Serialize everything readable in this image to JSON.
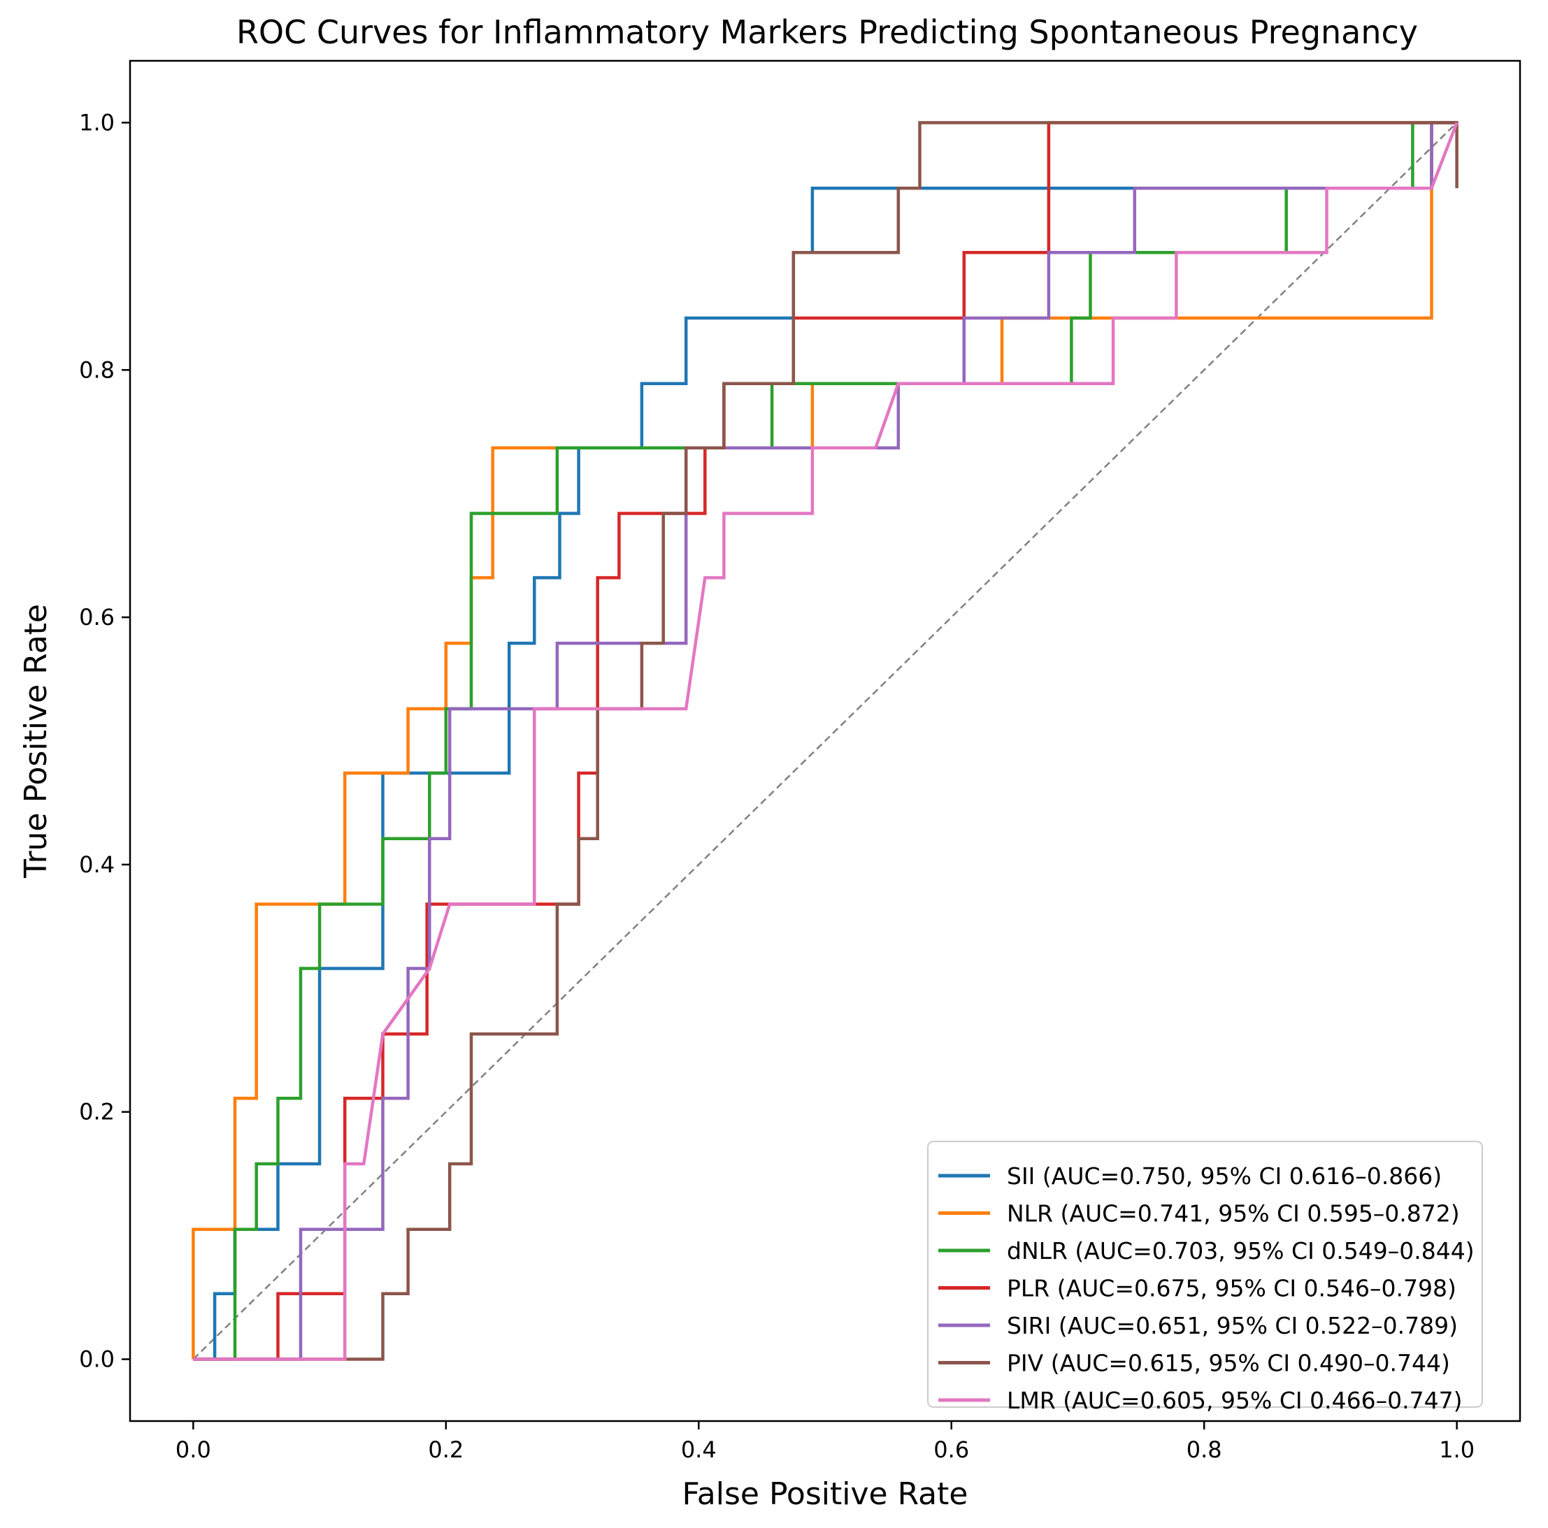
{
  "chart_data": {
    "type": "line",
    "title": "ROC Curves for Inflammatory Markers Predicting Spontaneous Pregnancy",
    "xlabel": "False Positive Rate",
    "ylabel": "True Positive Rate",
    "xlim": [
      -0.05,
      1.05
    ],
    "ylim": [
      -0.05,
      1.05
    ],
    "grid": false,
    "legend_position": "lower-right",
    "xticks": [
      0.0,
      0.2,
      0.4,
      0.6,
      0.8,
      1.0
    ],
    "yticks": [
      0.0,
      0.2,
      0.4,
      0.6,
      0.8,
      1.0
    ],
    "xtick_labels": [
      "0.0",
      "0.2",
      "0.4",
      "0.6",
      "0.8",
      "1.0"
    ],
    "ytick_labels": [
      "0.0",
      "0.2",
      "0.4",
      "0.6",
      "0.8",
      "1.0"
    ],
    "reference_line": {
      "x": [
        0,
        1
      ],
      "y": [
        0,
        1
      ],
      "color": "#808080",
      "style": "dashed"
    },
    "series": [
      {
        "name": "SII",
        "color": "#1f77b4",
        "legend_label": "SII (AUC=0.750, 95% CI 0.616–0.866)",
        "x": [
          0,
          0.017,
          0.017,
          0.033,
          0.033,
          0.067,
          0.067,
          0.1,
          0.1,
          0.15,
          0.15,
          0.25,
          0.25,
          0.27,
          0.27,
          0.29,
          0.29,
          0.305,
          0.305,
          0.355,
          0.355,
          0.39,
          0.39,
          0.475,
          0.475,
          0.49,
          0.49,
          0.575,
          0.575,
          0.98,
          0.98,
          1.0,
          1.0
        ],
        "y": [
          0,
          0,
          0.053,
          0.053,
          0.105,
          0.105,
          0.158,
          0.158,
          0.316,
          0.316,
          0.474,
          0.474,
          0.579,
          0.579,
          0.632,
          0.632,
          0.684,
          0.684,
          0.737,
          0.737,
          0.789,
          0.789,
          0.842,
          0.842,
          0.895,
          0.895,
          0.947,
          0.947,
          0.947,
          0.947,
          1.0,
          1.0,
          1.0
        ]
      },
      {
        "name": "NLR",
        "color": "#ff7f0e",
        "legend_label": "NLR (AUC=0.741, 95% CI 0.595–0.872)",
        "x": [
          0,
          0,
          0.033,
          0.033,
          0.05,
          0.05,
          0.12,
          0.12,
          0.17,
          0.17,
          0.2,
          0.2,
          0.22,
          0.22,
          0.237,
          0.237,
          0.49,
          0.49,
          0.64,
          0.64,
          0.98,
          0.98,
          1.0,
          1.0
        ],
        "y": [
          0,
          0.105,
          0.105,
          0.211,
          0.211,
          0.368,
          0.368,
          0.474,
          0.474,
          0.526,
          0.526,
          0.579,
          0.579,
          0.632,
          0.632,
          0.737,
          0.737,
          0.789,
          0.789,
          0.842,
          0.842,
          1.0,
          1.0,
          1.0
        ]
      },
      {
        "name": "dNLR",
        "color": "#2ca02c",
        "legend_label": "dNLR (AUC=0.703, 95% CI 0.549–0.844)",
        "x": [
          0,
          0.033,
          0.033,
          0.05,
          0.05,
          0.067,
          0.067,
          0.085,
          0.085,
          0.1,
          0.1,
          0.15,
          0.15,
          0.187,
          0.187,
          0.2,
          0.2,
          0.22,
          0.22,
          0.288,
          0.288,
          0.458,
          0.458,
          0.695,
          0.695,
          0.71,
          0.71,
          0.865,
          0.865,
          0.965,
          0.965,
          1.0,
          1.0
        ],
        "y": [
          0,
          0,
          0.105,
          0.105,
          0.158,
          0.158,
          0.211,
          0.211,
          0.316,
          0.316,
          0.368,
          0.368,
          0.421,
          0.421,
          0.474,
          0.474,
          0.526,
          0.526,
          0.684,
          0.684,
          0.737,
          0.737,
          0.789,
          0.789,
          0.842,
          0.842,
          0.895,
          0.895,
          0.947,
          0.947,
          1.0,
          1.0,
          1.0
        ]
      },
      {
        "name": "PLR",
        "color": "#d62728",
        "legend_label": "PLR (AUC=0.675, 95% CI 0.546–0.798)",
        "x": [
          0,
          0.067,
          0.067,
          0.12,
          0.12,
          0.15,
          0.15,
          0.185,
          0.185,
          0.305,
          0.305,
          0.32,
          0.32,
          0.337,
          0.337,
          0.355,
          0.355,
          0.39,
          0.39,
          0.405,
          0.405,
          0.42,
          0.42,
          0.475,
          0.475,
          0.61,
          0.61,
          0.677,
          0.677,
          1.0,
          1.0
        ],
        "y": [
          0,
          0,
          0.053,
          0.053,
          0.211,
          0.211,
          0.263,
          0.263,
          0.368,
          0.368,
          0.474,
          0.474,
          0.632,
          0.632,
          0.684,
          0.684,
          0.684,
          0.684,
          0.684,
          0.684,
          0.737,
          0.737,
          0.789,
          0.789,
          0.842,
          0.842,
          0.895,
          0.895,
          1.0,
          1.0,
          1.0
        ]
      },
      {
        "name": "SIRI",
        "color": "#9467bd",
        "legend_label": "SIRI (AUC=0.651, 95% CI 0.522–0.789)",
        "x": [
          0,
          0.085,
          0.085,
          0.15,
          0.15,
          0.17,
          0.17,
          0.187,
          0.187,
          0.203,
          0.203,
          0.288,
          0.288,
          0.39,
          0.39,
          0.558,
          0.558,
          0.61,
          0.61,
          0.677,
          0.677,
          0.745,
          0.745,
          0.98,
          0.98,
          1.0,
          1.0
        ],
        "y": [
          0,
          0,
          0.105,
          0.105,
          0.211,
          0.211,
          0.316,
          0.316,
          0.421,
          0.421,
          0.526,
          0.526,
          0.579,
          0.579,
          0.737,
          0.737,
          0.789,
          0.789,
          0.842,
          0.842,
          0.895,
          0.895,
          0.947,
          0.947,
          1.0,
          1.0,
          1.0
        ]
      },
      {
        "name": "PIV",
        "color": "#8c564b",
        "legend_label": "PIV (AUC=0.615, 95% CI 0.490–0.744)",
        "x": [
          0,
          0.15,
          0.15,
          0.17,
          0.17,
          0.203,
          0.203,
          0.22,
          0.22,
          0.288,
          0.288,
          0.305,
          0.305,
          0.32,
          0.32,
          0.355,
          0.355,
          0.372,
          0.372,
          0.39,
          0.39,
          0.42,
          0.42,
          0.475,
          0.475,
          0.558,
          0.558,
          0.575,
          0.575,
          1.0,
          1.0
        ],
        "y": [
          0,
          0,
          0.053,
          0.053,
          0.105,
          0.105,
          0.158,
          0.158,
          0.263,
          0.263,
          0.368,
          0.368,
          0.421,
          0.421,
          0.526,
          0.526,
          0.579,
          0.579,
          0.684,
          0.684,
          0.737,
          0.737,
          0.789,
          0.789,
          0.895,
          0.895,
          0.947,
          0.947,
          1.0,
          1.0,
          0.947
        ]
      },
      {
        "name": "LMR",
        "color": "#e377c2",
        "legend_label": "LMR (AUC=0.605, 95% CI 0.466–0.747)",
        "x": [
          0,
          0.12,
          0.12,
          0.135,
          0.15,
          0.15,
          0.187,
          0.203,
          0.27,
          0.27,
          0.39,
          0.405,
          0.42,
          0.42,
          0.49,
          0.49,
          0.54,
          0.558,
          0.728,
          0.728,
          0.778,
          0.778,
          0.897,
          0.897,
          0.98,
          1.0
        ],
        "y": [
          0,
          0,
          0.158,
          0.158,
          0.263,
          0.263,
          0.316,
          0.368,
          0.368,
          0.526,
          0.526,
          0.632,
          0.632,
          0.684,
          0.684,
          0.737,
          0.737,
          0.789,
          0.789,
          0.842,
          0.842,
          0.895,
          0.895,
          0.947,
          0.947,
          1.0
        ]
      }
    ]
  }
}
